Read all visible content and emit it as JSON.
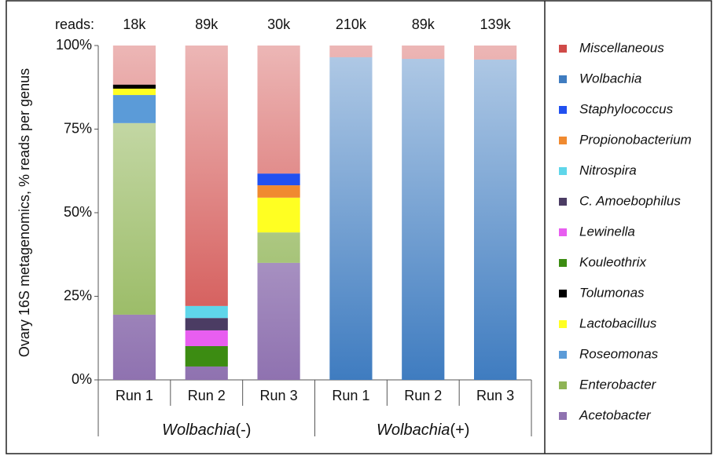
{
  "chart_data": {
    "type": "stacked_bar",
    "y_label": "Ovary 16S metagenomics, % reads per genus",
    "reads_label": "reads:",
    "reads": [
      "18k",
      "89k",
      "30k",
      "210k",
      "89k",
      "139k"
    ],
    "categories": [
      "Run 1",
      "Run 2",
      "Run 3",
      "Run 1",
      "Run 2",
      "Run 3"
    ],
    "groups": [
      {
        "italic": "Wolbachia",
        "text": "(-)",
        "start": 0,
        "end": 2
      },
      {
        "italic": "Wolbachia",
        "text": "(+)",
        "start": 3,
        "end": 5
      }
    ],
    "ylim": [
      0,
      100
    ],
    "yticks": [
      {
        "value": 0,
        "label": "0%"
      },
      {
        "value": 25,
        "label": "25%"
      },
      {
        "value": 50,
        "label": "50%"
      },
      {
        "value": 75,
        "label": "75%"
      },
      {
        "value": 100,
        "label": "100%"
      }
    ],
    "series": [
      {
        "name": "Acetobacter",
        "color": "#8f72b0",
        "gradient": true,
        "values": [
          19.5,
          4,
          35,
          null,
          null,
          null
        ]
      },
      {
        "name": "Enterobacter",
        "color": "#8fb455",
        "gradient": true,
        "values": [
          57.3,
          null,
          9.1,
          null,
          null,
          null
        ]
      },
      {
        "name": "Roseomonas",
        "color": "#5b9bd8",
        "values": [
          8.4,
          null,
          null,
          null,
          null,
          null
        ]
      },
      {
        "name": "Lactobacillus",
        "color": "#ffff22",
        "values": [
          1.9,
          null,
          10.4,
          null,
          null,
          null
        ]
      },
      {
        "name": "Tolumonas",
        "color": "#000000",
        "values": [
          1.2,
          null,
          null,
          null,
          null,
          null
        ]
      },
      {
        "name": "Kouleothrix",
        "color": "#3c8c12",
        "values": [
          null,
          6.1,
          null,
          null,
          null,
          null
        ]
      },
      {
        "name": "Lewinella",
        "color": "#e85ef0",
        "values": [
          null,
          4.7,
          null,
          null,
          null,
          null
        ]
      },
      {
        "name": "C. Amoebophilus",
        "color": "#4b3c63",
        "values": [
          null,
          3.7,
          null,
          null,
          null,
          null
        ]
      },
      {
        "name": "Nitrospira",
        "color": "#5fd6ea",
        "values": [
          null,
          3.6,
          null,
          null,
          null,
          null
        ]
      },
      {
        "name": "Propionobacterium",
        "color": "#f08a30",
        "values": [
          null,
          null,
          3.7,
          null,
          null,
          null
        ]
      },
      {
        "name": "Staphylococcus",
        "color": "#2150f0",
        "values": [
          null,
          null,
          3.5,
          null,
          null,
          null
        ]
      },
      {
        "name": "Wolbachia",
        "color": "#3f7cc0",
        "gradient": true,
        "values": [
          null,
          null,
          null,
          96.5,
          96,
          95.8
        ]
      },
      {
        "name": "Miscellaneous",
        "color": "#d04a48",
        "gradient": true,
        "values": [
          11.7,
          77.9,
          38.3,
          3.5,
          4,
          4.2
        ]
      }
    ]
  }
}
